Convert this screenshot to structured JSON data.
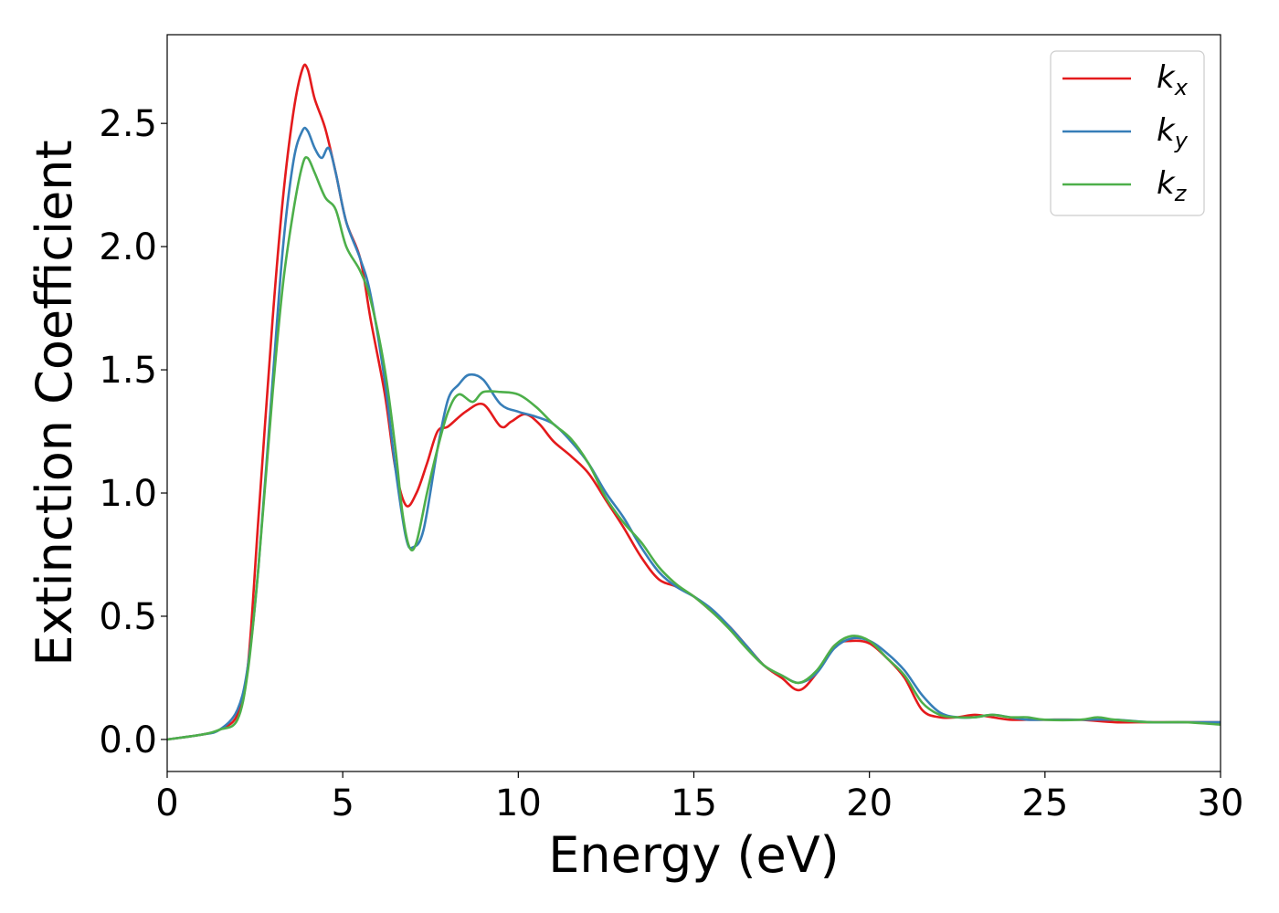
{
  "chart_data": {
    "type": "line",
    "xlabel": "Energy (eV)",
    "ylabel": "Extinction Coefficient",
    "xlim": [
      0,
      30
    ],
    "ylim": [
      -0.13,
      2.86
    ],
    "xticks": [
      0,
      5,
      10,
      15,
      20,
      25,
      30
    ],
    "xtick_labels": [
      "0",
      "5",
      "10",
      "15",
      "20",
      "25",
      "30"
    ],
    "yticks": [
      0.0,
      0.5,
      1.0,
      1.5,
      2.0,
      2.5
    ],
    "ytick_labels": [
      "0.0",
      "0.5",
      "1.0",
      "1.5",
      "2.0",
      "2.5"
    ],
    "grid": false,
    "legend_position": "top-right",
    "series": [
      {
        "name": "kx",
        "label_main": "k",
        "label_sub": "x",
        "color": "#e41a1c",
        "x": [
          0,
          1,
          1.5,
          2,
          2.3,
          2.6,
          3,
          3.3,
          3.6,
          3.85,
          4,
          4.2,
          4.5,
          4.8,
          5.1,
          5.5,
          5.8,
          6.2,
          6.5,
          6.8,
          7.1,
          7.4,
          7.7,
          8,
          8.5,
          9,
          9.5,
          9.8,
          10.2,
          10.6,
          11,
          11.5,
          12,
          12.5,
          13,
          13.5,
          14,
          14.5,
          15,
          15.5,
          16,
          16.5,
          17,
          17.5,
          18,
          18.5,
          19,
          19.5,
          20,
          20.5,
          21,
          21.5,
          22,
          22.5,
          23,
          23.5,
          24,
          24.5,
          25,
          26,
          27,
          28,
          29,
          30
        ],
        "y": [
          0.0,
          0.02,
          0.04,
          0.1,
          0.3,
          0.9,
          1.7,
          2.2,
          2.55,
          2.72,
          2.72,
          2.6,
          2.48,
          2.3,
          2.1,
          1.95,
          1.7,
          1.4,
          1.1,
          0.95,
          1.0,
          1.12,
          1.25,
          1.27,
          1.33,
          1.36,
          1.27,
          1.29,
          1.32,
          1.28,
          1.21,
          1.15,
          1.08,
          0.97,
          0.86,
          0.74,
          0.65,
          0.62,
          0.58,
          0.52,
          0.46,
          0.38,
          0.3,
          0.25,
          0.2,
          0.27,
          0.38,
          0.4,
          0.39,
          0.33,
          0.25,
          0.12,
          0.09,
          0.09,
          0.1,
          0.09,
          0.08,
          0.08,
          0.08,
          0.08,
          0.07,
          0.07,
          0.07,
          0.07
        ]
      },
      {
        "name": "ky",
        "label_main": "k",
        "label_sub": "y",
        "color": "#377eb8",
        "x": [
          0,
          1,
          1.5,
          2,
          2.3,
          2.6,
          3,
          3.3,
          3.6,
          3.85,
          4,
          4.2,
          4.4,
          4.6,
          4.8,
          5.1,
          5.5,
          5.8,
          6.2,
          6.5,
          6.8,
          7.0,
          7.3,
          7.7,
          8,
          8.3,
          8.6,
          9,
          9.5,
          10,
          10.5,
          11,
          11.5,
          12,
          12.5,
          13,
          13.5,
          14,
          14.5,
          15,
          15.5,
          16,
          16.5,
          17,
          17.5,
          18,
          18.5,
          19,
          19.5,
          20,
          20.5,
          21,
          21.5,
          22,
          22.5,
          23,
          23.5,
          24,
          24.5,
          25,
          26,
          27,
          28,
          29,
          30
        ],
        "y": [
          0.0,
          0.02,
          0.04,
          0.12,
          0.3,
          0.7,
          1.45,
          2.0,
          2.35,
          2.47,
          2.47,
          2.4,
          2.36,
          2.4,
          2.3,
          2.1,
          1.95,
          1.8,
          1.45,
          1.1,
          0.82,
          0.78,
          0.85,
          1.18,
          1.38,
          1.44,
          1.48,
          1.46,
          1.36,
          1.33,
          1.31,
          1.28,
          1.21,
          1.12,
          1.0,
          0.9,
          0.78,
          0.68,
          0.62,
          0.58,
          0.53,
          0.46,
          0.38,
          0.3,
          0.26,
          0.23,
          0.27,
          0.37,
          0.41,
          0.4,
          0.35,
          0.28,
          0.18,
          0.11,
          0.09,
          0.09,
          0.1,
          0.09,
          0.08,
          0.08,
          0.08,
          0.08,
          0.07,
          0.07,
          0.07
        ]
      },
      {
        "name": "kz",
        "label_main": "k",
        "label_sub": "z",
        "color": "#4daf4a",
        "x": [
          0,
          1,
          1.5,
          2,
          2.3,
          2.6,
          3,
          3.3,
          3.6,
          3.85,
          4,
          4.2,
          4.5,
          4.8,
          5.1,
          5.5,
          5.8,
          6.2,
          6.5,
          6.7,
          6.9,
          7.1,
          7.4,
          7.7,
          8,
          8.3,
          8.7,
          9,
          9.5,
          10,
          10.5,
          11,
          11.5,
          12,
          12.5,
          13,
          13.5,
          14,
          14.5,
          15,
          15.5,
          16,
          16.5,
          17,
          17.5,
          18,
          18.5,
          19,
          19.5,
          20,
          20.5,
          21,
          21.5,
          22,
          22.5,
          23,
          23.5,
          24,
          24.5,
          25,
          26,
          26.5,
          27,
          28,
          29,
          30
        ],
        "y": [
          0.0,
          0.02,
          0.04,
          0.08,
          0.28,
          0.7,
          1.4,
          1.85,
          2.15,
          2.33,
          2.36,
          2.3,
          2.2,
          2.15,
          2.0,
          1.9,
          1.78,
          1.5,
          1.18,
          0.92,
          0.78,
          0.8,
          1.0,
          1.18,
          1.33,
          1.4,
          1.37,
          1.41,
          1.41,
          1.4,
          1.35,
          1.28,
          1.22,
          1.12,
          0.98,
          0.88,
          0.8,
          0.7,
          0.63,
          0.58,
          0.52,
          0.45,
          0.37,
          0.3,
          0.26,
          0.23,
          0.28,
          0.38,
          0.42,
          0.4,
          0.33,
          0.26,
          0.15,
          0.1,
          0.09,
          0.09,
          0.1,
          0.09,
          0.09,
          0.08,
          0.08,
          0.09,
          0.08,
          0.07,
          0.07,
          0.06
        ]
      }
    ]
  }
}
